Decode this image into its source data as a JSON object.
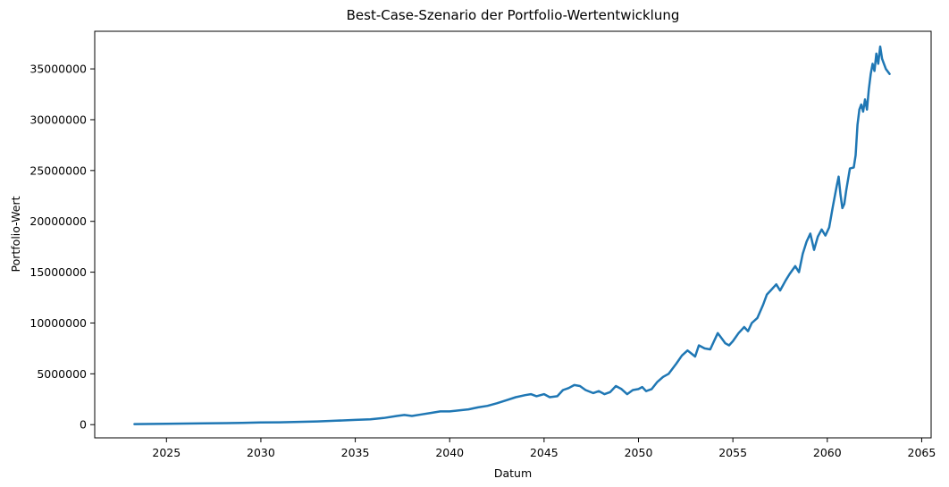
{
  "chart_data": {
    "type": "line",
    "title": "Best-Case-Szenario der Portfolio-Wertentwicklung",
    "xlabel": "Datum",
    "ylabel": "Portfolio-Wert",
    "xlim": [
      2021.2,
      2065.5
    ],
    "ylim": [
      -1300000,
      38700000
    ],
    "xticks": [
      2025,
      2030,
      2035,
      2040,
      2045,
      2050,
      2055,
      2060,
      2065
    ],
    "xtick_labels": [
      "2025",
      "2030",
      "2035",
      "2040",
      "2045",
      "2050",
      "2055",
      "2060",
      "2065"
    ],
    "yticks": [
      0,
      5000000,
      10000000,
      15000000,
      20000000,
      25000000,
      30000000,
      35000000
    ],
    "ytick_labels": [
      "0",
      "5000000",
      "10000000",
      "15000000",
      "20000000",
      "25000000",
      "30000000",
      "35000000"
    ],
    "grid": false,
    "line_color": "#1f77b4",
    "series": [
      {
        "points": [
          [
            2023.3,
            50000
          ],
          [
            2025,
            80000
          ],
          [
            2027,
            120000
          ],
          [
            2029,
            170000
          ],
          [
            2030,
            220000
          ],
          [
            2031,
            230000
          ],
          [
            2032,
            270000
          ],
          [
            2033,
            320000
          ],
          [
            2034,
            390000
          ],
          [
            2035,
            470000
          ],
          [
            2035.8,
            520000
          ],
          [
            2036.5,
            650000
          ],
          [
            2037.2,
            850000
          ],
          [
            2037.6,
            950000
          ],
          [
            2038,
            850000
          ],
          [
            2038.5,
            1000000
          ],
          [
            2039,
            1150000
          ],
          [
            2039.5,
            1300000
          ],
          [
            2040,
            1300000
          ],
          [
            2040.5,
            1400000
          ],
          [
            2041,
            1500000
          ],
          [
            2041.5,
            1700000
          ],
          [
            2042,
            1850000
          ],
          [
            2042.5,
            2100000
          ],
          [
            2043,
            2400000
          ],
          [
            2043.5,
            2700000
          ],
          [
            2044,
            2900000
          ],
          [
            2044.3,
            3000000
          ],
          [
            2044.6,
            2800000
          ],
          [
            2045,
            3000000
          ],
          [
            2045.3,
            2700000
          ],
          [
            2045.7,
            2800000
          ],
          [
            2046,
            3400000
          ],
          [
            2046.3,
            3600000
          ],
          [
            2046.6,
            3900000
          ],
          [
            2046.9,
            3800000
          ],
          [
            2047.2,
            3400000
          ],
          [
            2047.6,
            3100000
          ],
          [
            2047.9,
            3300000
          ],
          [
            2048.2,
            3000000
          ],
          [
            2048.5,
            3200000
          ],
          [
            2048.8,
            3800000
          ],
          [
            2049.1,
            3500000
          ],
          [
            2049.4,
            3000000
          ],
          [
            2049.7,
            3400000
          ],
          [
            2050,
            3500000
          ],
          [
            2050.2,
            3700000
          ],
          [
            2050.4,
            3300000
          ],
          [
            2050.7,
            3500000
          ],
          [
            2051,
            4200000
          ],
          [
            2051.3,
            4700000
          ],
          [
            2051.6,
            5000000
          ],
          [
            2052,
            6000000
          ],
          [
            2052.3,
            6800000
          ],
          [
            2052.6,
            7300000
          ],
          [
            2052.8,
            7000000
          ],
          [
            2053,
            6700000
          ],
          [
            2053.2,
            7800000
          ],
          [
            2053.5,
            7500000
          ],
          [
            2053.8,
            7400000
          ],
          [
            2054,
            8200000
          ],
          [
            2054.2,
            9000000
          ],
          [
            2054.4,
            8500000
          ],
          [
            2054.6,
            8000000
          ],
          [
            2054.8,
            7800000
          ],
          [
            2055,
            8200000
          ],
          [
            2055.3,
            9000000
          ],
          [
            2055.6,
            9600000
          ],
          [
            2055.8,
            9200000
          ],
          [
            2056,
            10000000
          ],
          [
            2056.3,
            10500000
          ],
          [
            2056.6,
            11800000
          ],
          [
            2056.8,
            12800000
          ],
          [
            2057,
            13200000
          ],
          [
            2057.3,
            13800000
          ],
          [
            2057.5,
            13200000
          ],
          [
            2057.8,
            14200000
          ],
          [
            2058,
            14800000
          ],
          [
            2058.3,
            15600000
          ],
          [
            2058.5,
            15000000
          ],
          [
            2058.7,
            16800000
          ],
          [
            2058.9,
            18000000
          ],
          [
            2059.1,
            18800000
          ],
          [
            2059.3,
            17200000
          ],
          [
            2059.5,
            18500000
          ],
          [
            2059.7,
            19200000
          ],
          [
            2059.9,
            18600000
          ],
          [
            2060.1,
            19400000
          ],
          [
            2060.3,
            21500000
          ],
          [
            2060.5,
            23500000
          ],
          [
            2060.6,
            24400000
          ],
          [
            2060.7,
            22600000
          ],
          [
            2060.8,
            21300000
          ],
          [
            2060.9,
            21700000
          ],
          [
            2061,
            23000000
          ],
          [
            2061.2,
            25200000
          ],
          [
            2061.4,
            25300000
          ],
          [
            2061.5,
            26500000
          ],
          [
            2061.6,
            29500000
          ],
          [
            2061.7,
            31000000
          ],
          [
            2061.8,
            31500000
          ],
          [
            2061.9,
            30800000
          ],
          [
            2062,
            32000000
          ],
          [
            2062.1,
            31000000
          ],
          [
            2062.2,
            33000000
          ],
          [
            2062.3,
            34500000
          ],
          [
            2062.4,
            35500000
          ],
          [
            2062.5,
            34800000
          ],
          [
            2062.6,
            36500000
          ],
          [
            2062.7,
            35500000
          ],
          [
            2062.8,
            37200000
          ],
          [
            2062.9,
            36000000
          ],
          [
            2063,
            35500000
          ],
          [
            2063.1,
            35000000
          ],
          [
            2063.3,
            34500000
          ]
        ]
      }
    ]
  }
}
